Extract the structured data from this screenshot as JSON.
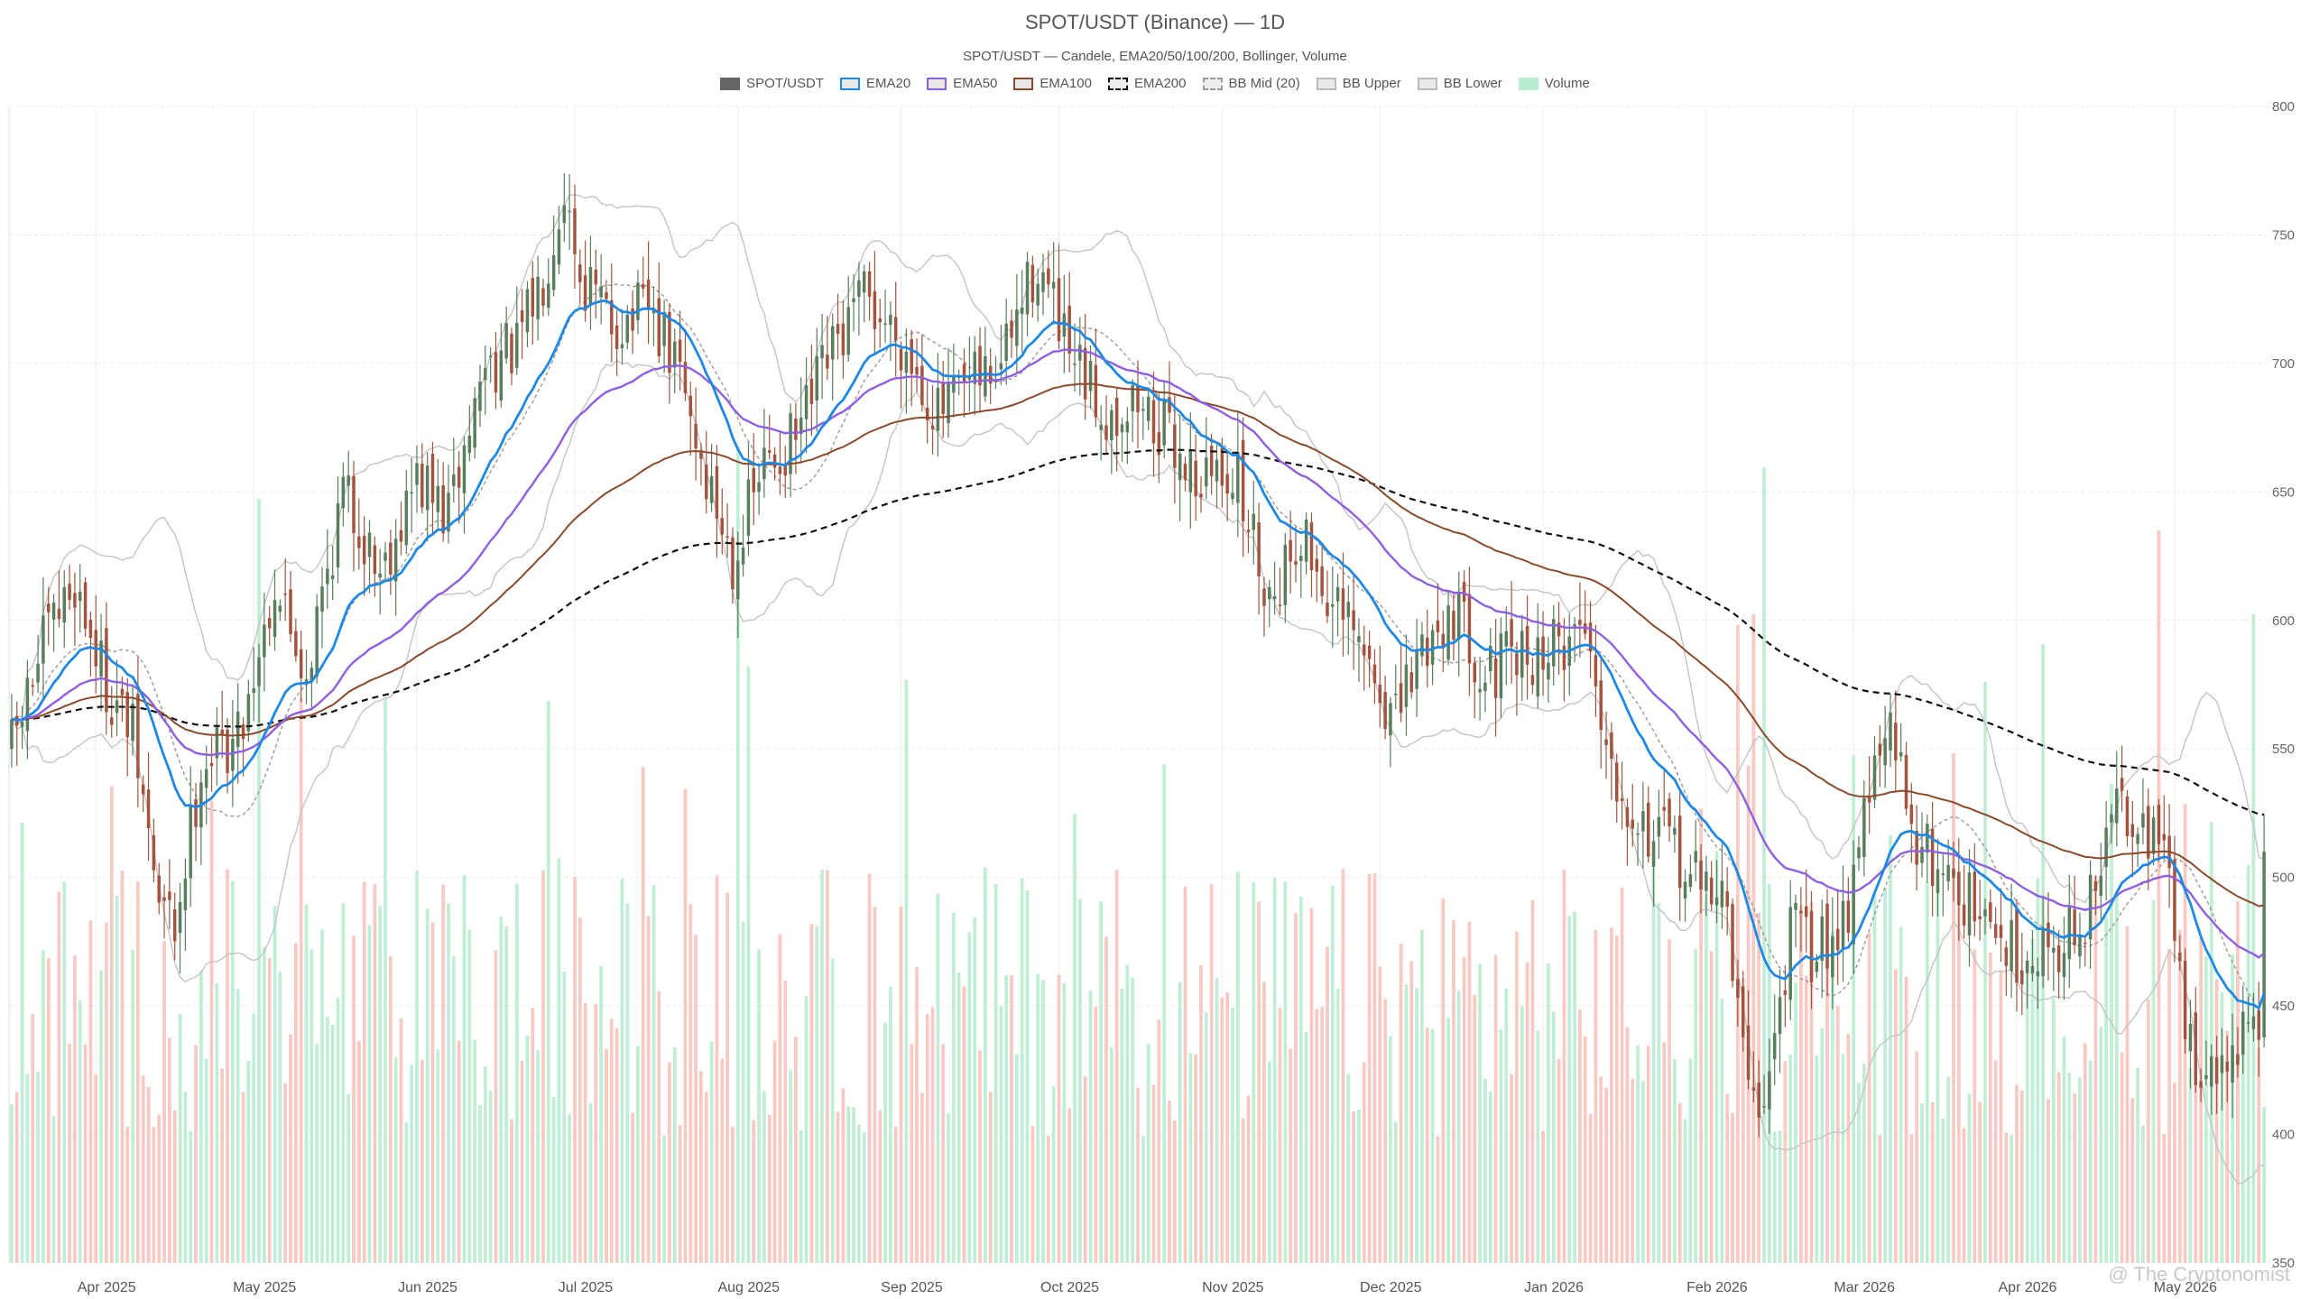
{
  "chart_data": {
    "type": "candlestick",
    "title": "SPOT/USDT (Binance) — 1D",
    "subtitle": "SPOT/USDT — Candele, EMA20/50/100/200, Bollinger, Volume",
    "legend": [
      {
        "label": "SPOT/USDT",
        "color": "#666666",
        "style": "solid-fill"
      },
      {
        "label": "EMA20",
        "color": "#1e88e5",
        "style": "line"
      },
      {
        "label": "EMA50",
        "color": "#8e5fe0",
        "style": "line"
      },
      {
        "label": "EMA100",
        "color": "#8b4a2b",
        "style": "line"
      },
      {
        "label": "EMA200",
        "color": "#111111",
        "style": "dashed"
      },
      {
        "label": "BB Mid (20)",
        "color": "#999999",
        "style": "dashed"
      },
      {
        "label": "BB Upper",
        "color": "#bbbbbb",
        "style": "line"
      },
      {
        "label": "BB Lower",
        "color": "#bbbbbb",
        "style": "line"
      },
      {
        "label": "Volume",
        "color": "#b6ecd0",
        "style": "solid-fill"
      }
    ],
    "x_ticks": [
      "Apr 2025",
      "May 2025",
      "Jun 2025",
      "Jul 2025",
      "Aug 2025",
      "Sep 2025",
      "Oct 2025",
      "Nov 2025",
      "Dec 2025",
      "Jan 2026",
      "Feb 2026",
      "Mar 2026",
      "Apr 2026",
      "May 2026"
    ],
    "x_range": [
      "2025-03-16",
      "2026-05-18"
    ],
    "y_ticks": [
      350,
      400,
      450,
      500,
      550,
      600,
      650,
      700,
      750,
      800
    ],
    "ylim": [
      350,
      800
    ],
    "grid": true,
    "colors": {
      "up": "#5a7d5e",
      "down": "#a2543e",
      "vol_up": "#bfeed4",
      "vol_down": "#f7c9c2"
    },
    "close_keypoints": [
      [
        "2025-03-16",
        550
      ],
      [
        "2025-03-22",
        590
      ],
      [
        "2025-03-28",
        615
      ],
      [
        "2025-04-03",
        575
      ],
      [
        "2025-04-08",
        555
      ],
      [
        "2025-04-13",
        490
      ],
      [
        "2025-04-16",
        480
      ],
      [
        "2025-04-21",
        545
      ],
      [
        "2025-04-28",
        555
      ],
      [
        "2025-05-05",
        615
      ],
      [
        "2025-05-11",
        580
      ],
      [
        "2025-05-18",
        650
      ],
      [
        "2025-05-25",
        620
      ],
      [
        "2025-06-01",
        655
      ],
      [
        "2025-06-07",
        640
      ],
      [
        "2025-06-14",
        700
      ],
      [
        "2025-06-20",
        705
      ],
      [
        "2025-06-25",
        735
      ],
      [
        "2025-06-29",
        770
      ],
      [
        "2025-07-02",
        735
      ],
      [
        "2025-07-08",
        715
      ],
      [
        "2025-07-15",
        720
      ],
      [
        "2025-07-21",
        695
      ],
      [
        "2025-07-26",
        655
      ],
      [
        "2025-07-31",
        625
      ],
      [
        "2025-08-06",
        660
      ],
      [
        "2025-08-12",
        670
      ],
      [
        "2025-08-18",
        700
      ],
      [
        "2025-08-25",
        725
      ],
      [
        "2025-09-01",
        710
      ],
      [
        "2025-09-08",
        680
      ],
      [
        "2025-09-14",
        690
      ],
      [
        "2025-09-20",
        700
      ],
      [
        "2025-09-27",
        740
      ],
      [
        "2025-10-03",
        700
      ],
      [
        "2025-10-10",
        680
      ],
      [
        "2025-10-16",
        685
      ],
      [
        "2025-10-22",
        670
      ],
      [
        "2025-10-28",
        655
      ],
      [
        "2025-11-03",
        660
      ],
      [
        "2025-11-10",
        610
      ],
      [
        "2025-11-16",
        635
      ],
      [
        "2025-11-22",
        605
      ],
      [
        "2025-11-28",
        585
      ],
      [
        "2025-12-04",
        560
      ],
      [
        "2025-12-09",
        590
      ],
      [
        "2025-12-15",
        605
      ],
      [
        "2025-12-21",
        580
      ],
      [
        "2025-12-28",
        585
      ],
      [
        "2026-01-04",
        590
      ],
      [
        "2026-01-09",
        600
      ],
      [
        "2026-01-14",
        545
      ],
      [
        "2026-01-20",
        520
      ],
      [
        "2026-01-26",
        510
      ],
      [
        "2026-01-31",
        495
      ],
      [
        "2026-02-04",
        500
      ],
      [
        "2026-02-08",
        430
      ],
      [
        "2026-02-12",
        410
      ],
      [
        "2026-02-17",
        480
      ],
      [
        "2026-02-22",
        470
      ],
      [
        "2026-02-28",
        490
      ],
      [
        "2026-03-03",
        530
      ],
      [
        "2026-03-08",
        555
      ],
      [
        "2026-03-14",
        510
      ],
      [
        "2026-03-20",
        500
      ],
      [
        "2026-03-26",
        480
      ],
      [
        "2026-04-02",
        470
      ],
      [
        "2026-04-08",
        475
      ],
      [
        "2026-04-14",
        480
      ],
      [
        "2026-04-20",
        530
      ],
      [
        "2026-04-25",
        525
      ],
      [
        "2026-04-30",
        500
      ],
      [
        "2026-05-03",
        440
      ],
      [
        "2026-05-08",
        420
      ],
      [
        "2026-05-13",
        435
      ],
      [
        "2026-05-17",
        445
      ],
      [
        "2026-05-18",
        510
      ]
    ],
    "volume_peaks": [
      [
        "2025-05-02",
        7300
      ],
      [
        "2025-08-01",
        7800
      ],
      [
        "2026-02-07",
        6100
      ],
      [
        "2026-02-10",
        6200
      ],
      [
        "2026-02-12",
        7600
      ],
      [
        "2026-04-28",
        7000
      ],
      [
        "2026-05-16",
        6200
      ],
      [
        "2025-05-10",
        5400
      ],
      [
        "2025-08-03",
        5700
      ]
    ],
    "volume_scale_max": 10000
  },
  "watermark": "@ The Cryptonomist"
}
